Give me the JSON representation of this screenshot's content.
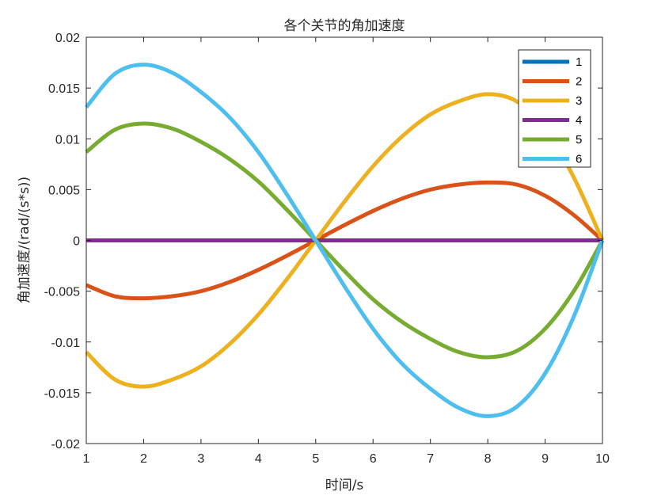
{
  "chart_data": {
    "type": "line",
    "title": "各个关节的角加速度",
    "xlabel": "时间/s",
    "ylabel": "角加速度/(rad/(s*s))",
    "xlim": [
      1,
      10
    ],
    "ylim": [
      -0.02,
      0.02
    ],
    "x_ticks": [
      "1",
      "2",
      "3",
      "4",
      "5",
      "6",
      "7",
      "8",
      "9",
      "10"
    ],
    "y_ticks": [
      "-0.02",
      "-0.015",
      "-0.01",
      "-0.005",
      "0",
      "0.005",
      "0.01",
      "0.015",
      "0.02"
    ],
    "grid": false,
    "legend_position": "top-right",
    "x": [
      1,
      1.5,
      2,
      2.5,
      3,
      3.5,
      4,
      4.5,
      5,
      5.5,
      6,
      6.5,
      7,
      7.5,
      8,
      8.5,
      9,
      9.5,
      10
    ],
    "series": [
      {
        "name": "1",
        "color": "#0072BD",
        "values": [
          0,
          0,
          0,
          0,
          0,
          0,
          0,
          0,
          0,
          0,
          0,
          0,
          0,
          0,
          0,
          0,
          0,
          0,
          0
        ]
      },
      {
        "name": "2",
        "color": "#D95319",
        "values": [
          -0.0044,
          -0.0055,
          -0.0057,
          -0.0055,
          -0.005,
          -0.0041,
          -0.0029,
          -0.0015,
          0,
          0.0015,
          0.0029,
          0.0041,
          0.005,
          0.0055,
          0.0057,
          0.0055,
          0.0044,
          0.0025,
          0
        ]
      },
      {
        "name": "3",
        "color": "#EDB120",
        "values": [
          -0.011,
          -0.0137,
          -0.0144,
          -0.0137,
          -0.0124,
          -0.0102,
          -0.0073,
          -0.0038,
          0,
          0.0038,
          0.0073,
          0.0102,
          0.0124,
          0.0137,
          0.0144,
          0.0137,
          0.011,
          0.0062,
          0
        ]
      },
      {
        "name": "4",
        "color": "#7E2F8E",
        "values": [
          0,
          0,
          0,
          0,
          0,
          0,
          0,
          0,
          0,
          0,
          0,
          0,
          0,
          0,
          0,
          0,
          0,
          0,
          0
        ]
      },
      {
        "name": "5",
        "color": "#77AC30",
        "values": [
          0.0087,
          0.0109,
          0.0115,
          0.011,
          0.0097,
          0.008,
          0.0058,
          0.003,
          0,
          -0.003,
          -0.0058,
          -0.008,
          -0.0097,
          -0.011,
          -0.0115,
          -0.0109,
          -0.0087,
          -0.005,
          0
        ]
      },
      {
        "name": "6",
        "color": "#4DBEEE",
        "values": [
          0.0131,
          0.0164,
          0.0173,
          0.0165,
          0.0146,
          0.0121,
          0.0087,
          0.0045,
          0,
          -0.0045,
          -0.0087,
          -0.0121,
          -0.0146,
          -0.0165,
          -0.0173,
          -0.0164,
          -0.0131,
          -0.0075,
          0
        ]
      }
    ]
  }
}
